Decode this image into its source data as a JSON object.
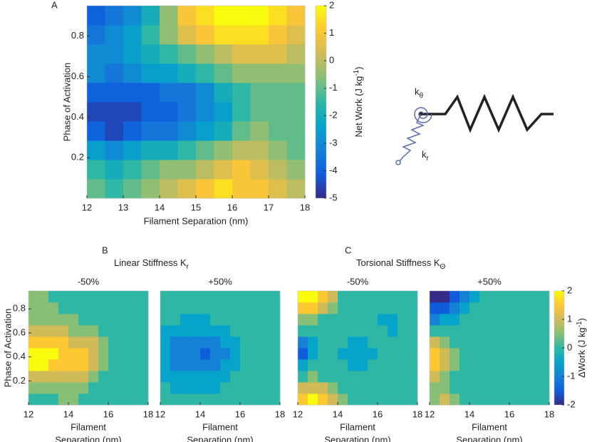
{
  "colormap": [
    "#352a87",
    "#0f5cdd",
    "#1481d6",
    "#06a4ca",
    "#2eb7a4",
    "#87bf77",
    "#d1bb59",
    "#fec832",
    "#f9fb0e"
  ],
  "panels": {
    "A": "A",
    "B": "B",
    "C": "C",
    "B_title": [
      "Linear Stiffness K",
      "r"
    ],
    "C_title": [
      "Torsional Stiffness K",
      "Θ"
    ]
  },
  "diagram": {
    "spiral_label": [
      "k",
      "θ"
    ],
    "spring_label": [
      "k",
      "r"
    ]
  },
  "chart_data": [
    {
      "type": "heatmap",
      "xbins": [
        12,
        12.5,
        13,
        13.5,
        14,
        14.5,
        15,
        15.5,
        16,
        16.5,
        17,
        17.5,
        18
      ],
      "ybins": [
        0,
        0.095,
        0.19,
        0.285,
        0.38,
        0.475,
        0.57,
        0.665,
        0.76,
        0.855,
        0.95
      ],
      "xlim": [
        12,
        18
      ],
      "ylim": [
        0,
        0.95
      ],
      "xticks": [
        12,
        13,
        14,
        15,
        16,
        17,
        18
      ],
      "yticks": [
        0.2,
        0.4,
        0.6,
        0.8
      ],
      "xlabel": [
        "Filament Separation (nm)"
      ],
      "ylabel": "Phase of Activation",
      "clim": [
        -5,
        2
      ],
      "cticks": [
        -5,
        -4,
        -3,
        -2,
        -1,
        0,
        1,
        2
      ],
      "colorbar_label": [
        "Net Work (J kg",
        "-1",
        ")"
      ],
      "values": [
        [
          -1,
          -1.5,
          -1,
          -0.5,
          0,
          0.5,
          1,
          1.5,
          1,
          1,
          0.5,
          0
        ],
        [
          -1.5,
          -2,
          -1.5,
          -1,
          -0.5,
          -0.5,
          0,
          0.5,
          1,
          0.5,
          0,
          -0.5
        ],
        [
          -2.5,
          -3,
          -2.5,
          -2,
          -2,
          -1.5,
          -1,
          -0.5,
          0,
          0,
          -0.5,
          -1
        ],
        [
          -4,
          -4.5,
          -4,
          -3.5,
          -3.5,
          -3,
          -2.5,
          -2,
          -1,
          -0.5,
          -1,
          -1
        ],
        [
          -4.5,
          -4.5,
          -4.5,
          -4,
          -4,
          -3.5,
          -3,
          -2.5,
          -1.5,
          -1,
          -1,
          -1
        ],
        [
          -4,
          -4,
          -4,
          -4,
          -3.5,
          -3.5,
          -3,
          -2,
          -1.5,
          -1,
          -1,
          -1
        ],
        [
          -3,
          -3.5,
          -3,
          -2.5,
          -2.5,
          -2,
          -1.5,
          -1,
          -0.5,
          -0.5,
          -0.5,
          -0.5
        ],
        [
          -3,
          -3,
          -2.5,
          -2,
          -1.5,
          -1,
          -0.5,
          0,
          0.5,
          0.5,
          0.5,
          0
        ],
        [
          -3.5,
          -3,
          -2.5,
          -1.5,
          -0.5,
          0.5,
          1,
          1.5,
          1.5,
          1.5,
          1,
          0.5
        ],
        [
          -4,
          -3.5,
          -3,
          -2,
          -0.5,
          1,
          1.5,
          2,
          2,
          2,
          1.5,
          1
        ]
      ]
    },
    {
      "type": "heatmap",
      "title": "-50%",
      "xbins": [
        12,
        12.5,
        13,
        13.5,
        14,
        14.5,
        15,
        15.5,
        16,
        16.5,
        17,
        17.5,
        18
      ],
      "ybins": [
        0,
        0.095,
        0.19,
        0.285,
        0.38,
        0.475,
        0.57,
        0.665,
        0.76,
        0.855,
        0.95
      ],
      "xlim": [
        12,
        18
      ],
      "ylim": [
        0,
        0.95
      ],
      "xticks": [
        12,
        14,
        16,
        18
      ],
      "yticks": [
        0.2,
        0.4,
        0.6,
        0.8
      ],
      "xlabel": [
        "Filament",
        "Separation (nm)"
      ],
      "ylabel": "Phase of Activation",
      "clim": [
        -2,
        2
      ],
      "values": [
        [
          0,
          0,
          0,
          0.5,
          0.5,
          0,
          0,
          0,
          0,
          0,
          0,
          0
        ],
        [
          0.5,
          0.5,
          0.5,
          0.5,
          0.5,
          0.5,
          0,
          0,
          0,
          0,
          0,
          0
        ],
        [
          1,
          1,
          1,
          1,
          1,
          1,
          0.5,
          0,
          0,
          0,
          0,
          0
        ],
        [
          2,
          2,
          1.5,
          1.5,
          1.5,
          1.5,
          1,
          0.5,
          0,
          0,
          0,
          0
        ],
        [
          2,
          2,
          2,
          1.5,
          1.5,
          1.5,
          1,
          0.5,
          0,
          0,
          0,
          0
        ],
        [
          1.5,
          1.5,
          1.5,
          1.5,
          1,
          1,
          1,
          0.5,
          0,
          0,
          0,
          0
        ],
        [
          1,
          1,
          1,
          1,
          0.5,
          0.5,
          0.5,
          0,
          0,
          0,
          0,
          0
        ],
        [
          0.5,
          0.5,
          0.5,
          0.5,
          0.5,
          0,
          0,
          0,
          0,
          0,
          0,
          0
        ],
        [
          0.5,
          0.5,
          0.5,
          0,
          0,
          0,
          0,
          0,
          0,
          0,
          0,
          0
        ],
        [
          0.5,
          0.5,
          0,
          0,
          0,
          0,
          0,
          0,
          0,
          0,
          0,
          0
        ]
      ]
    },
    {
      "type": "heatmap",
      "title": "+50%",
      "xbins": [
        12,
        12.5,
        13,
        13.5,
        14,
        14.5,
        15,
        15.5,
        16,
        16.5,
        17,
        17.5,
        18
      ],
      "ybins": [
        0,
        0.095,
        0.19,
        0.285,
        0.38,
        0.475,
        0.57,
        0.665,
        0.76,
        0.855,
        0.95
      ],
      "xlim": [
        12,
        18
      ],
      "ylim": [
        0,
        0.95
      ],
      "xticks": [
        12,
        14,
        16,
        18
      ],
      "xlabel": [
        "Filament",
        "Separation (nm)"
      ],
      "clim": [
        -2,
        2
      ],
      "values": [
        [
          0,
          0,
          0,
          0,
          0,
          0,
          0,
          0,
          0,
          0,
          0,
          0
        ],
        [
          0,
          -0.5,
          -0.5,
          -0.5,
          -0.5,
          -0.5,
          0,
          0,
          0,
          0,
          0,
          0
        ],
        [
          -0.5,
          -0.5,
          -0.5,
          -0.5,
          -0.5,
          -0.5,
          -0.5,
          0,
          0,
          0,
          0,
          0
        ],
        [
          -0.5,
          -1,
          -1,
          -1,
          -1,
          -1,
          -0.5,
          -0.5,
          0,
          0,
          0,
          0
        ],
        [
          -0.5,
          -1,
          -1,
          -1,
          -1.5,
          -1,
          -1,
          -0.5,
          0,
          0,
          0,
          0
        ],
        [
          -0.5,
          -1,
          -1,
          -1,
          -1,
          -1,
          -0.5,
          -0.5,
          0,
          0,
          0,
          0
        ],
        [
          -0.5,
          -0.5,
          -0.5,
          -0.5,
          -0.5,
          -0.5,
          -0.5,
          0,
          0,
          0,
          0,
          0
        ],
        [
          0,
          0,
          -0.5,
          -0.5,
          -0.5,
          0,
          0,
          0,
          0,
          0,
          0,
          0
        ],
        [
          0,
          0,
          0,
          0,
          0,
          0,
          0,
          0,
          0,
          0,
          0,
          0
        ],
        [
          0,
          0,
          0,
          0,
          0,
          0,
          0,
          0,
          0,
          0,
          0,
          0
        ]
      ]
    },
    {
      "type": "heatmap",
      "title": "-50%",
      "xbins": [
        12,
        12.5,
        13,
        13.5,
        14,
        14.5,
        15,
        15.5,
        16,
        16.5,
        17,
        17.5,
        18
      ],
      "ybins": [
        0,
        0.095,
        0.19,
        0.285,
        0.38,
        0.475,
        0.57,
        0.665,
        0.76,
        0.855,
        0.95
      ],
      "xlim": [
        12,
        18
      ],
      "ylim": [
        0,
        0.95
      ],
      "xticks": [
        12,
        14,
        16,
        18
      ],
      "xlabel": [
        "Filament",
        "Separation (nm)"
      ],
      "clim": [
        -2,
        2
      ],
      "values": [
        [
          1.5,
          2,
          1.5,
          1,
          0.5,
          0,
          0,
          0,
          0,
          0,
          0,
          0
        ],
        [
          1,
          1,
          1,
          0.5,
          0,
          0,
          0,
          0,
          0,
          0,
          0,
          0
        ],
        [
          0,
          0.5,
          0,
          0,
          0,
          0,
          0,
          0,
          0,
          0,
          0,
          0
        ],
        [
          -0.5,
          0,
          0,
          0,
          0,
          -0.5,
          -0.5,
          0,
          0,
          0,
          0,
          0
        ],
        [
          -1.5,
          -0.5,
          0,
          0,
          -0.5,
          -0.5,
          -0.5,
          -0.5,
          0,
          0,
          0,
          0
        ],
        [
          -1,
          -0.5,
          0,
          0,
          0,
          -0.5,
          -0.5,
          0,
          0,
          0,
          0,
          0
        ],
        [
          0,
          0,
          0,
          0,
          0,
          0,
          0,
          0,
          0,
          -0.5,
          0,
          0
        ],
        [
          0.5,
          0.5,
          0,
          0,
          0,
          0,
          0,
          0,
          -0.5,
          -0.5,
          0,
          0
        ],
        [
          1.5,
          1.5,
          1,
          0.5,
          0,
          0,
          0,
          0,
          0,
          0,
          0,
          0
        ],
        [
          2,
          2,
          1.5,
          1,
          0,
          0,
          0,
          0,
          0,
          0,
          0,
          0
        ]
      ]
    },
    {
      "type": "heatmap",
      "title": "+50%",
      "xbins": [
        12,
        12.5,
        13,
        13.5,
        14,
        14.5,
        15,
        15.5,
        16,
        16.5,
        17,
        17.5,
        18
      ],
      "ybins": [
        0,
        0.095,
        0.19,
        0.285,
        0.38,
        0.475,
        0.57,
        0.665,
        0.76,
        0.855,
        0.95
      ],
      "xlim": [
        12,
        18
      ],
      "ylim": [
        0,
        0.95
      ],
      "xticks": [
        12,
        14,
        16,
        18
      ],
      "xlabel": [
        "Filament",
        "Separation (nm)"
      ],
      "clim": [
        -2,
        2
      ],
      "cticks": [
        -2,
        -1,
        0,
        1,
        2
      ],
      "colorbar_label": [
        "ΔWork (J kg",
        "-1",
        ")"
      ],
      "values": [
        [
          0.5,
          1,
          0.5,
          0,
          0,
          0,
          0,
          0,
          0,
          0,
          0,
          0
        ],
        [
          0.5,
          0.5,
          0,
          0,
          0,
          0,
          0,
          0,
          0,
          0,
          0,
          0
        ],
        [
          1,
          0.5,
          0,
          0,
          0,
          0,
          0,
          0,
          0,
          0,
          0,
          0
        ],
        [
          1.5,
          1,
          0.5,
          0,
          0,
          0,
          0,
          0,
          0,
          0,
          0,
          0
        ],
        [
          1.5,
          1,
          0.5,
          0,
          0,
          0,
          0,
          0,
          0,
          0,
          0,
          0
        ],
        [
          1,
          0.5,
          0,
          0,
          0,
          0,
          0,
          0,
          0,
          0,
          0,
          0
        ],
        [
          0,
          0,
          0,
          0,
          0,
          0,
          0,
          0,
          0,
          0,
          0,
          0
        ],
        [
          -1,
          -0.5,
          -0.5,
          0,
          0,
          0,
          0,
          0,
          0,
          0,
          0,
          0
        ],
        [
          -1.5,
          -1.5,
          -1,
          -0.5,
          0,
          0,
          0,
          0,
          0,
          0,
          0,
          0
        ],
        [
          -2,
          -2,
          -1.5,
          -1,
          -0.5,
          0,
          0,
          0,
          0,
          0,
          0,
          0
        ]
      ]
    }
  ]
}
